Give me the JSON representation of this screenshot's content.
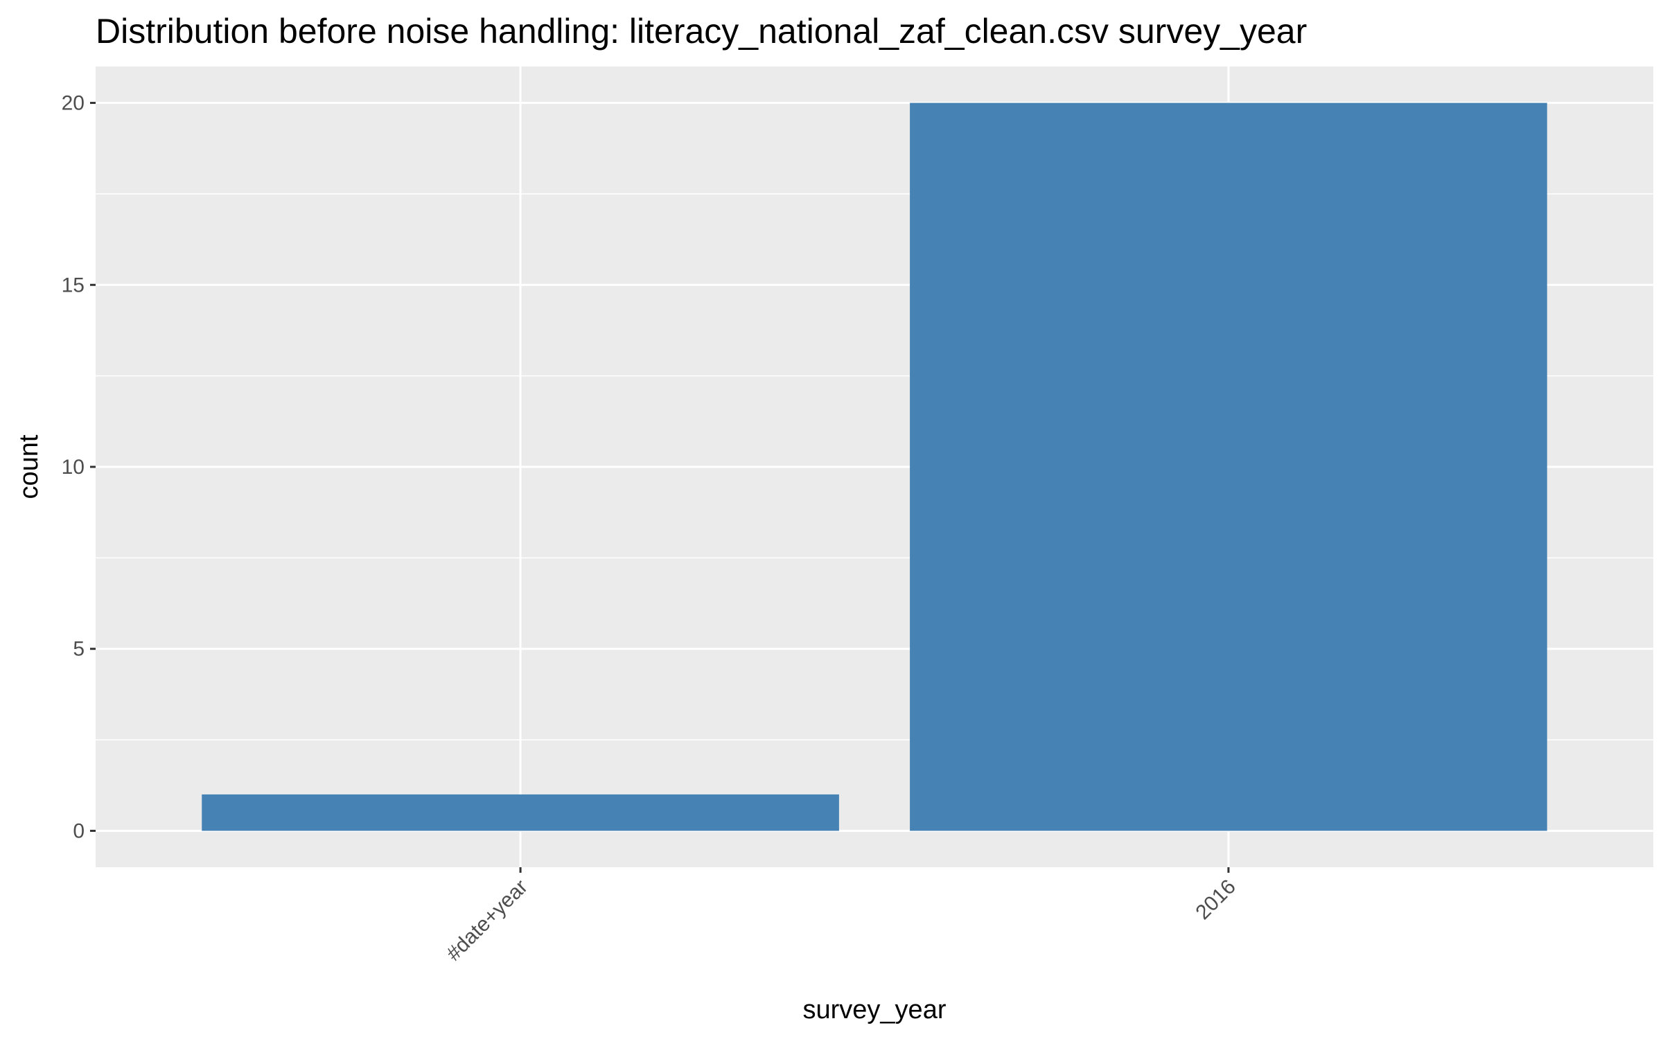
{
  "chart_data": {
    "type": "bar",
    "title": "Distribution before noise handling: literacy_national_zaf_clean.csv survey_year",
    "xlabel": "survey_year",
    "ylabel": "count",
    "categories": [
      "#date+year",
      "2016"
    ],
    "values": [
      1,
      20
    ],
    "ylim": [
      -1,
      21
    ],
    "yticks": [
      0,
      5,
      10,
      15,
      20
    ],
    "ytick_labels": [
      "0",
      "5",
      "10",
      "15",
      "20"
    ],
    "grid": true,
    "legend": "none",
    "colors": {
      "bar": "#4682B4",
      "panel": "#EBEBEB",
      "grid": "#FFFFFF",
      "tick_text": "#4D4D4D",
      "text": "#000000"
    }
  }
}
